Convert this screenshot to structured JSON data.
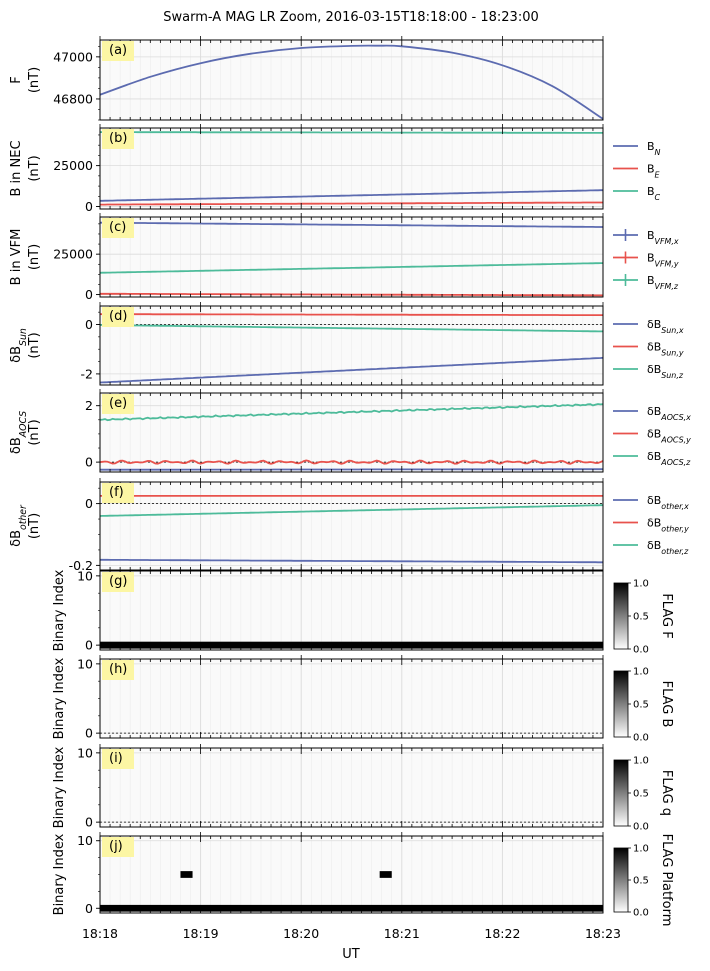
{
  "title": "Swarm-A MAG LR Zoom, 2016-03-15T18:18:00 - 23:00",
  "title_full": "Swarm-A MAG LR Zoom, 2016-03-15T18:18:00 - 18:23:00",
  "xlabel": "UT",
  "x_ticks": [
    "18:18",
    "18:19",
    "18:20",
    "18:21",
    "18:22",
    "18:23"
  ],
  "colors": {
    "blue": "#5c6bb0",
    "red": "#e8524c",
    "green": "#4dbb9a",
    "panel_tag_bg": "#fcf6a4",
    "grid": "#e6e6e6"
  },
  "chart_data": [
    {
      "type": "line",
      "panel": "(a)",
      "ylabel": [
        "F",
        "(nT)"
      ],
      "ylim": [
        46700,
        47080
      ],
      "yticks": [
        46800,
        47000
      ],
      "x": [
        0,
        1,
        2,
        3,
        4,
        5
      ],
      "series": [
        {
          "name": "F",
          "color": "#5c6bb0",
          "x": [
            0,
            0.5,
            1,
            1.5,
            2,
            2.5,
            2.75,
            3,
            3.5,
            4,
            4.5,
            5
          ],
          "values": [
            46820,
            46905,
            46970,
            47015,
            47042,
            47052,
            47053,
            47050,
            47020,
            46960,
            46860,
            46705
          ]
        }
      ]
    },
    {
      "type": "line",
      "panel": "(b)",
      "ylabel": [
        "B in NEC",
        "(nT)"
      ],
      "ylim": [
        -1500,
        48000
      ],
      "yticks": [
        0,
        25000
      ],
      "legend": [
        "B_N",
        "B_E",
        "B_C"
      ],
      "series": [
        {
          "name": "B_N",
          "color": "#5c6bb0",
          "x": [
            0,
            5
          ],
          "values": [
            3500,
            10000
          ]
        },
        {
          "name": "B_E",
          "color": "#e8524c",
          "x": [
            0,
            5
          ],
          "values": [
            1200,
            2500
          ]
        },
        {
          "name": "B_C",
          "color": "#4dbb9a",
          "x": [
            0,
            5
          ],
          "values": [
            45500,
            45000
          ]
        }
      ]
    },
    {
      "type": "line",
      "panel": "(c)",
      "ylabel": [
        "B in VFM",
        "(nT)"
      ],
      "ylim": [
        -1500,
        48000
      ],
      "yticks": [
        0,
        25000
      ],
      "legend": [
        "B_VFM,x",
        "B_VFM,y",
        "B_VFM,z"
      ],
      "series": [
        {
          "name": "B_VFM,x",
          "color": "#5c6bb0",
          "x": [
            0,
            5
          ],
          "values": [
            44500,
            41800
          ]
        },
        {
          "name": "B_VFM,y",
          "color": "#e8524c",
          "x": [
            0,
            5
          ],
          "values": [
            500,
            -500
          ]
        },
        {
          "name": "B_VFM,z",
          "color": "#4dbb9a",
          "x": [
            0,
            5
          ],
          "values": [
            13500,
            19500
          ]
        }
      ]
    },
    {
      "type": "line",
      "panel": "(d)",
      "ylabel": [
        "δB_Sun",
        "(nT)"
      ],
      "ylim": [
        -2.45,
        0.75
      ],
      "yticks": [
        -2,
        0
      ],
      "legend": [
        "δB_Sun,x",
        "δB_Sun,y",
        "δB_Sun,z"
      ],
      "series": [
        {
          "name": "δB_Sun,x",
          "color": "#5c6bb0",
          "x": [
            0,
            5
          ],
          "values": [
            -2.35,
            -1.35
          ]
        },
        {
          "name": "δB_Sun,y",
          "color": "#e8524c",
          "x": [
            0,
            5
          ],
          "values": [
            0.42,
            0.38
          ]
        },
        {
          "name": "δB_Sun,z",
          "color": "#4dbb9a",
          "x": [
            0,
            5
          ],
          "values": [
            -0.02,
            -0.28
          ]
        }
      ]
    },
    {
      "type": "line",
      "panel": "(e)",
      "ylabel": [
        "δB_AOCS",
        "(nT)"
      ],
      "ylim": [
        -0.35,
        2.45
      ],
      "yticks": [
        0,
        2
      ],
      "legend": [
        "δB_AOCS,x",
        "δB_AOCS,y",
        "δB_AOCS,z"
      ],
      "series": [
        {
          "name": "δB_AOCS,x",
          "color": "#5c6bb0",
          "x": [
            0,
            5
          ],
          "values": [
            -0.27,
            -0.25
          ]
        },
        {
          "name": "δB_AOCS,y",
          "color": "#e8524c",
          "x": [
            0,
            5
          ],
          "values": [
            0.0,
            0.0
          ]
        },
        {
          "name": "δB_AOCS,z",
          "color": "#4dbb9a",
          "x": [
            0,
            5
          ],
          "values": [
            1.5,
            2.05
          ]
        }
      ]
    },
    {
      "type": "line",
      "panel": "(f)",
      "ylabel": [
        "δB_other",
        "(nT)"
      ],
      "ylim": [
        -0.215,
        0.07
      ],
      "yticks": [
        -0.2,
        0.0
      ],
      "legend": [
        "δB_other,x",
        "δB_other,y",
        "δB_other,z"
      ],
      "series": [
        {
          "name": "δB_other,x",
          "color": "#5c6bb0",
          "x": [
            0,
            5
          ],
          "values": [
            -0.182,
            -0.19
          ]
        },
        {
          "name": "δB_other,y",
          "color": "#e8524c",
          "x": [
            0,
            5
          ],
          "values": [
            0.025,
            0.025
          ]
        },
        {
          "name": "δB_other,z",
          "color": "#4dbb9a",
          "x": [
            0,
            5
          ],
          "values": [
            -0.04,
            -0.005
          ]
        }
      ]
    },
    {
      "type": "heatmap",
      "panel": "(g)",
      "ylabel": [
        "Binary Index"
      ],
      "ylim": [
        -0.7,
        10.7
      ],
      "yticks": [
        0,
        10
      ],
      "colorbar_label": "FLAG F",
      "colorbar_ticks": [
        "0.0",
        "0.5",
        "1.0"
      ],
      "rows": [
        {
          "index": 0,
          "segments": [
            [
              0,
              5
            ]
          ]
        }
      ]
    },
    {
      "type": "heatmap",
      "panel": "(h)",
      "ylabel": [
        "Binary Index"
      ],
      "ylim": [
        -0.7,
        10.7
      ],
      "yticks": [
        0,
        10
      ],
      "colorbar_label": "FLAG B",
      "colorbar_ticks": [
        "0.0",
        "0.5",
        "1.0"
      ],
      "rows": []
    },
    {
      "type": "heatmap",
      "panel": "(i)",
      "ylabel": [
        "Binary Index"
      ],
      "ylim": [
        -0.7,
        10.7
      ],
      "yticks": [
        0,
        10
      ],
      "colorbar_label": "FLAG q",
      "colorbar_ticks": [
        "0.0",
        "0.5",
        "1.0"
      ],
      "rows": []
    },
    {
      "type": "heatmap",
      "panel": "(j)",
      "ylabel": [
        "Binary Index"
      ],
      "ylim": [
        -0.7,
        10.7
      ],
      "yticks": [
        0,
        10
      ],
      "colorbar_label": "FLAG Platform",
      "colorbar_ticks": [
        "0.0",
        "0.5",
        "1.0"
      ],
      "rows": [
        {
          "index": 0,
          "segments": [
            [
              0,
              5
            ]
          ]
        },
        {
          "index": 5,
          "segments": [
            [
              0.8,
              0.92
            ],
            [
              2.78,
              2.9
            ]
          ]
        }
      ]
    }
  ]
}
